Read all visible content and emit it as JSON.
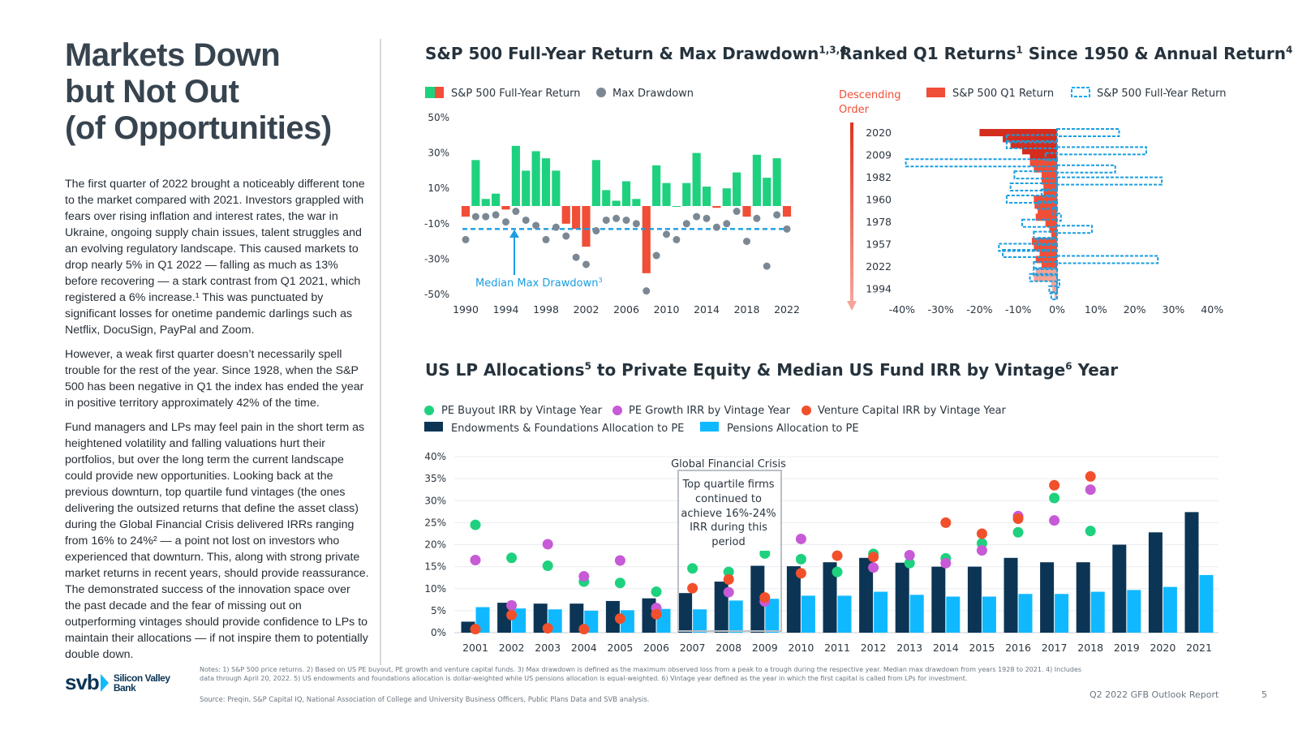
{
  "page": {
    "title_lines": [
      "Markets Down",
      "but Not Out",
      "(of Opportunities)"
    ],
    "paragraphs": [
      "The first quarter of 2022 brought a noticeably different tone to the market compared with 2021. Investors grappled with fears over rising inflation and interest rates, the war in Ukraine, ongoing supply chain issues, talent struggles and an evolving regulatory landscape. This caused markets to drop nearly 5% in Q1 2022 — falling as much as 13% before recovering — a stark contrast from Q1 2021, which registered a 6% increase.¹ This was punctuated by significant losses for onetime pandemic darlings such as Netflix, DocuSign, PayPal and Zoom.",
      "However, a weak first quarter doesn’t necessarily spell trouble for the rest of the year. Since 1928, when the S&P 500 has been negative in Q1 the index has ended the year in positive territory approximately 42% of the time.",
      "Fund managers and LPs may feel pain in the short term as heightened volatility and falling valuations hurt their portfolios, but over the long term the current landscape could provide new opportunities. Looking back at the previous downturn, top quartile fund vintages (the ones delivering the outsized returns that define the asset class) during the Global Financial Crisis delivered IRRs ranging from 16% to 24%² — a point not lost on investors who experienced that downturn. This, along with strong private market returns in recent years, should provide reassurance. The demonstrated success of the innovation space over the past decade and the fear of missing out on outperforming vintages should provide confidence to LPs to maintain their allocations — if not inspire them to potentially double down."
    ],
    "logo_mark": "svb",
    "logo_text_1": "Silicon Valley",
    "logo_text_2": "Bank",
    "notes": "Notes: 1) S&P 500 price returns. 2) Based on US PE buyout, PE growth and venture capital funds. 3) Max drawdown is defined as the maximum observed loss from a peak to a trough during the respective year. Median max drawdown from years 1928 to 2021. 4) Includes data through April 20, 2022. 5) US endowments and foundations allocation is dollar-weighted while US pensions allocation is equal-weighted. 6) Vintage year defined as the year in which the first capital is called from LPs for investment.",
    "source": "Source: Preqin, S&P Capital IQ, National Association of College and University Business Officers, Public Plans Data and SVB analysis.",
    "footer": "Q2 2022 GFB Outlook Report",
    "page_number": "5"
  },
  "colors": {
    "green": "#1ed17e",
    "red": "#f04e37",
    "gray": "#7b8894",
    "blue_dash": "#1a9ee0",
    "navy": "#0c3555",
    "cyan": "#10b9ff",
    "purple": "#c75ad6",
    "orange": "#f1502b",
    "dark_red": "#d42d1e",
    "light_red": "#f4a397"
  },
  "chart_data": [
    {
      "id": "sp500",
      "type": "bar",
      "title": "S&P 500 Full-Year Return & Max Drawdown",
      "title_sup": "1,3,4",
      "legend": [
        "S&P 500 Full-Year Return",
        "Max Drawdown"
      ],
      "annotation": "Median Max Drawdown",
      "annotation_sup": "3",
      "ylim": [
        -50,
        50
      ],
      "y_ticks": [
        "50%",
        "30%",
        "10%",
        "-10%",
        "-30%",
        "-50%"
      ],
      "y_tick_values": [
        50,
        30,
        10,
        -10,
        -30,
        -50
      ],
      "x_tick_labels": [
        "1990",
        "1994",
        "1998",
        "2002",
        "2006",
        "2010",
        "2014",
        "2018",
        "2022"
      ],
      "years": [
        1990,
        1991,
        1992,
        1993,
        1994,
        1995,
        1996,
        1997,
        1998,
        1999,
        2000,
        2001,
        2002,
        2003,
        2004,
        2005,
        2006,
        2007,
        2008,
        2009,
        2010,
        2011,
        2012,
        2013,
        2014,
        2015,
        2016,
        2017,
        2018,
        2019,
        2020,
        2021,
        2022
      ],
      "returns": [
        -6,
        26,
        4,
        7,
        -2,
        34,
        20,
        31,
        27,
        20,
        -10,
        -13,
        -23,
        26,
        9,
        3,
        14,
        4,
        -38,
        23,
        13,
        0,
        13,
        30,
        11,
        -1,
        10,
        19,
        -6,
        29,
        16,
        27,
        -6
      ],
      "max_drawdown": [
        -19,
        -6,
        -6,
        -5,
        -9,
        -3,
        -8,
        -11,
        -19,
        -12,
        -17,
        -29,
        -33,
        -14,
        -8,
        -7,
        -8,
        -10,
        -48,
        -28,
        -16,
        -19,
        -10,
        -6,
        -7,
        -12,
        -10,
        -3,
        -20,
        -7,
        -34,
        -5,
        -13
      ],
      "median_max_drawdown": -13
    },
    {
      "id": "q1ranked",
      "type": "bar",
      "title": "Ranked Q1 Returns",
      "title_sup": "1",
      "title_rest": "Since 1950 & Annual Return",
      "title_sup2": "4",
      "legend": [
        "S&P 500 Q1 Return",
        "S&P 500 Full-Year Return"
      ],
      "order_label_1": "Descending",
      "order_label_2": "Order",
      "xlim": [
        -40,
        40
      ],
      "x_tick_labels": [
        "-40%",
        "-30%",
        "-20%",
        "-10%",
        "0%",
        "10%",
        "20%",
        "30%",
        "40%"
      ],
      "x_tick_values": [
        -40,
        -30,
        -20,
        -10,
        0,
        10,
        20,
        30,
        40
      ],
      "y_labels": [
        "2020",
        "2009",
        "1982",
        "1960",
        "1978",
        "1957",
        "2022",
        "1994"
      ],
      "q1_returns": [
        -20,
        -14,
        -12,
        -9,
        -7,
        -7,
        -6,
        -4,
        -4,
        -3.5,
        -3.5,
        -6,
        -5.8,
        -5,
        -5.5,
        -3,
        -2,
        -1.5,
        -6.5,
        -6,
        -4.5,
        -5.5,
        -4,
        -5.5,
        -6,
        -1.5,
        -1.2,
        -0.6
      ],
      "full_year_returns": [
        16,
        -13,
        -13,
        23,
        -3,
        -39,
        15,
        -11,
        27,
        -12,
        -4,
        -13,
        -5,
        -1,
        1,
        -9,
        9,
        -6,
        -5,
        -15,
        -14,
        26,
        -6,
        -6,
        -7,
        0,
        -2,
        -1.5
      ]
    },
    {
      "id": "pe",
      "type": "bar",
      "title": "US LP Allocations",
      "title_sup": "5",
      "title_rest": "to Private Equity & Median US Fund IRR by Vintage",
      "title_sup2": "6",
      "title_end": "Year",
      "legend": [
        "PE Buyout IRR by Vintage Year",
        "PE Growth IRR by Vintage Year",
        "Venture Capital IRR by Vintage Year",
        "Endowments & Foundations Allocation to PE",
        "Pensions Allocation to PE"
      ],
      "ylim": [
        0,
        40
      ],
      "y_ticks": [
        "40%",
        "35%",
        "30%",
        "25%",
        "20%",
        "15%",
        "10%",
        "5%",
        "0%"
      ],
      "y_tick_values": [
        40,
        35,
        30,
        25,
        20,
        15,
        10,
        5,
        0
      ],
      "categories": [
        "2001",
        "2002",
        "2003",
        "2004",
        "2005",
        "2006",
        "2007",
        "2008",
        "2009",
        "2010",
        "2011",
        "2012",
        "2013",
        "2014",
        "2015",
        "2016",
        "2017",
        "2018",
        "2019",
        "2020",
        "2021"
      ],
      "series": [
        {
          "name": "Endowments & Foundations Allocation to PE",
          "values": [
            2.5,
            6.8,
            6.6,
            6.6,
            7.2,
            7.8,
            9,
            11.6,
            15.2,
            15.1,
            16,
            17,
            15.9,
            15,
            15,
            17,
            16,
            16,
            20,
            22.8,
            27.4
          ]
        },
        {
          "name": "Pensions Allocation to PE",
          "values": [
            5.8,
            5.5,
            5.3,
            5,
            5.1,
            5.4,
            5.3,
            7.3,
            7.7,
            8.4,
            8.4,
            9.3,
            8.6,
            8.2,
            8.2,
            8.8,
            8.8,
            9.3,
            9.7,
            10.4,
            13.1
          ]
        },
        {
          "name": "PE Buyout IRR by Vintage Year",
          "values": [
            24.5,
            17,
            15.2,
            11.6,
            11.3,
            9.3,
            14.6,
            13.8,
            18,
            16.7,
            13.8,
            17.9,
            15.8,
            16.9,
            20.3,
            22.8,
            30.6,
            23.1,
            null,
            null,
            null
          ]
        },
        {
          "name": "PE Growth IRR by Vintage Year",
          "values": [
            16.5,
            6.2,
            20.1,
            12.8,
            16.4,
            5.6,
            null,
            9.2,
            7.1,
            21.3,
            null,
            14.8,
            17.6,
            15.8,
            18.7,
            26.5,
            25.5,
            32.5,
            null,
            null,
            null
          ]
        },
        {
          "name": "Venture Capital IRR by Vintage Year",
          "values": [
            0.8,
            4,
            1,
            0.8,
            3.2,
            4.2,
            10.1,
            12.1,
            8,
            13.5,
            17.5,
            17.2,
            null,
            25,
            22.5,
            25.9,
            33.5,
            35.5,
            null,
            null,
            null
          ]
        }
      ],
      "gfc_label": "Global Financial Crisis",
      "gfc_note": [
        "Top quartile firms",
        "continued to",
        "achieve 16%-24%",
        "IRR during this",
        "period"
      ]
    }
  ]
}
